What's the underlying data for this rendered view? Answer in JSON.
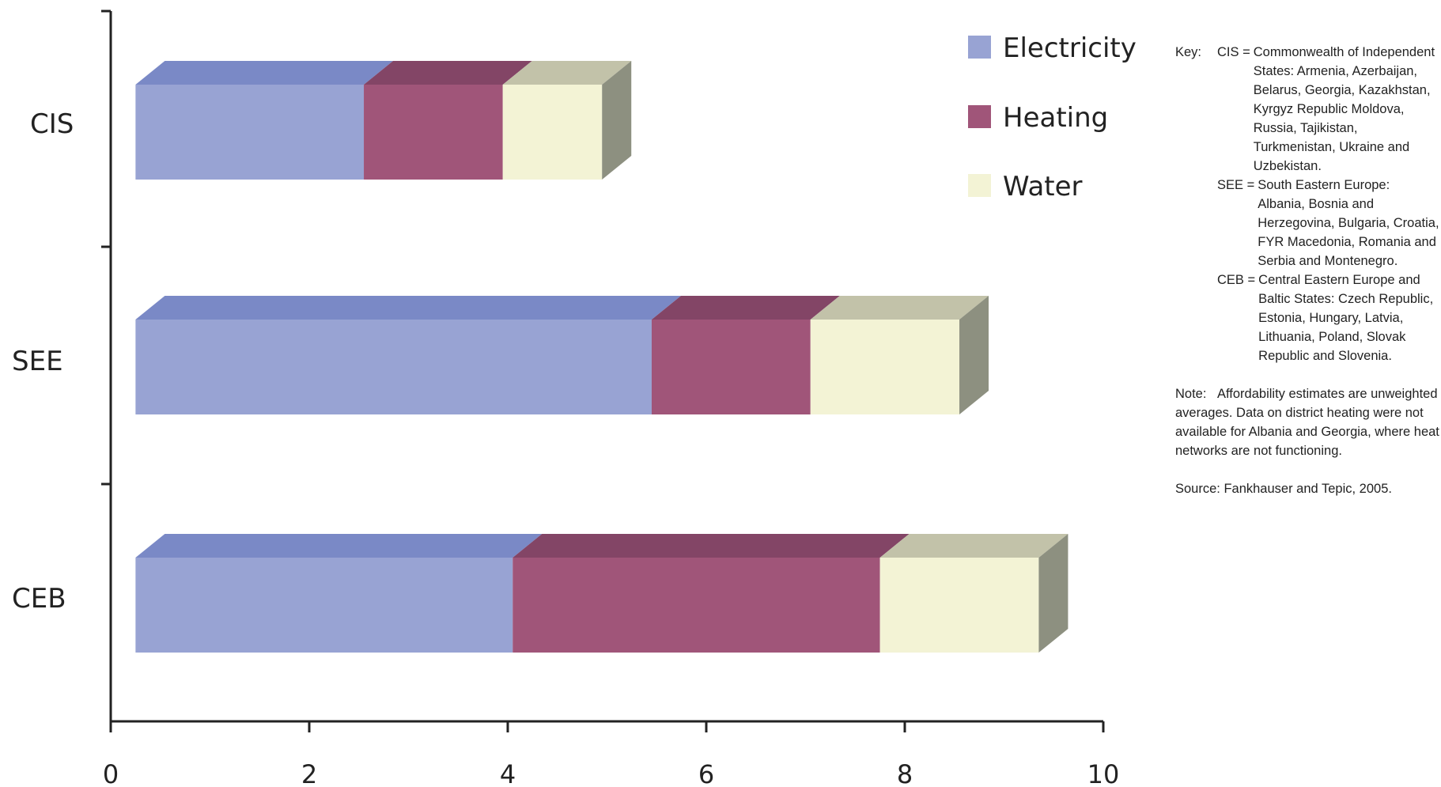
{
  "chart_data": {
    "type": "bar",
    "orientation": "horizontal",
    "stacked": true,
    "style": "3d",
    "title": "",
    "xlabel": "",
    "ylabel": "",
    "categories": [
      "CIS",
      "SEE",
      "CEB"
    ],
    "series": [
      {
        "name": "Electricity",
        "color": "#98a3d3",
        "top_color": "#7a89c6",
        "values": [
          2.3,
          5.2,
          3.8
        ]
      },
      {
        "name": "Heating",
        "color": "#a05579",
        "top_color": "#834566",
        "values": [
          1.4,
          1.6,
          3.7
        ]
      },
      {
        "name": "Water",
        "color": "#f3f3d5",
        "top_color": "#c2c2a9",
        "values": [
          1.0,
          1.5,
          1.6
        ]
      }
    ],
    "side_color": "#8d9080",
    "x_ticks": [
      0,
      2,
      4,
      6,
      8,
      10
    ],
    "x_tick_labels": [
      "0",
      "2",
      "4",
      "6",
      "8",
      "10"
    ],
    "xlim": [
      0,
      10
    ],
    "bars_start": 0.25,
    "grid": false,
    "legend_position": "top-right"
  },
  "notes": {
    "key_label": "Key:",
    "key_items": [
      {
        "abbr": "CIS =",
        "definition": "Commonwealth of Independent States: Armenia, Azerbaijan, Belarus, Georgia, Kazakhstan, Kyrgyz Republic Moldova, Russia, Tajikistan, Turkmenistan, Ukraine and Uzbekistan."
      },
      {
        "abbr": "SEE =",
        "definition": "South Eastern Europe: Albania, Bosnia and Herzegovina, Bulgaria, Croatia, FYR Macedonia, Romania and Serbia and Montenegro."
      },
      {
        "abbr": "CEB =",
        "definition": "Central Eastern Europe and Baltic States: Czech Republic, Estonia, Hungary, Latvia, Lithuania, Poland, Slovak Republic and Slovenia."
      }
    ],
    "note_label": "Note:",
    "note_text": "Affordability estimates are unweighted averages. Data on district heating were not available for Albania and Georgia, where heat networks are not functioning.",
    "source_text": "Source: Fankhauser and Tepic, 2005."
  }
}
